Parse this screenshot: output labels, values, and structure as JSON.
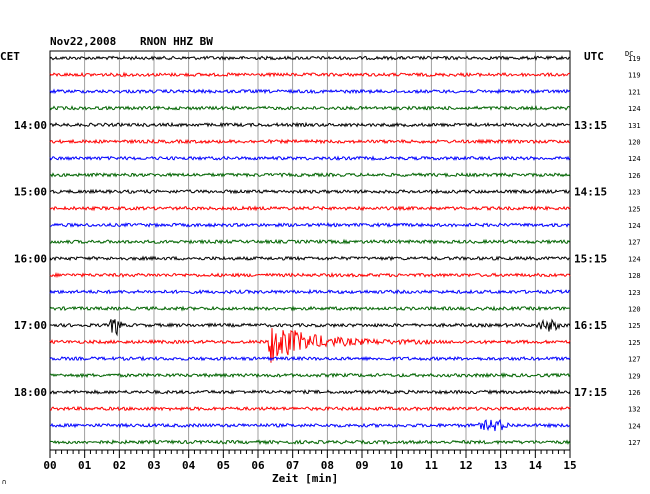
{
  "header": {
    "date": "Nov22,2008",
    "station": "RNON HHZ BW"
  },
  "left_axis_label": "CET",
  "right_axis_label": "UTC",
  "dc_label": "DC",
  "footer_mark": "∩",
  "colors": [
    "#000000",
    "#ff0000",
    "#0000ff",
    "#006400"
  ],
  "chart_data": {
    "type": "line",
    "title": "Nov22,2008   RNON HHZ BW",
    "xlabel": "Zeit [min]",
    "xlim": [
      0,
      15
    ],
    "x_ticks": [
      "00",
      "01",
      "02",
      "03",
      "04",
      "05",
      "06",
      "07",
      "08",
      "09",
      "10",
      "11",
      "12",
      "13",
      "14",
      "15"
    ],
    "left_time_labels": [
      {
        "trace": 4,
        "label": "14:00"
      },
      {
        "trace": 8,
        "label": "15:00"
      },
      {
        "trace": 12,
        "label": "16:00"
      },
      {
        "trace": 16,
        "label": "17:00"
      },
      {
        "trace": 20,
        "label": "18:00"
      }
    ],
    "right_time_labels": [
      {
        "trace": 4,
        "label": "13:15"
      },
      {
        "trace": 8,
        "label": "14:15"
      },
      {
        "trace": 12,
        "label": "15:15"
      },
      {
        "trace": 16,
        "label": "16:15"
      },
      {
        "trace": 20,
        "label": "17:15"
      }
    ],
    "dc_values": [
      "119",
      "119",
      "121",
      "124",
      "131",
      "120",
      "124",
      "126",
      "123",
      "125",
      "124",
      "127",
      "124",
      "128",
      "123",
      "120",
      "125",
      "125",
      "127",
      "129",
      "126",
      "132",
      "124",
      "127"
    ],
    "events": [
      {
        "trace": 16,
        "start_min": 1.7,
        "end_min": 2.1,
        "amplitude": "moderate"
      },
      {
        "trace": 16,
        "start_min": 14.0,
        "end_min": 15.0,
        "amplitude": "small"
      },
      {
        "trace": 17,
        "start_min": 6.3,
        "end_min": 11.0,
        "amplitude": "large"
      },
      {
        "trace": 22,
        "start_min": 12.3,
        "end_min": 13.6,
        "amplitude": "small"
      }
    ]
  }
}
